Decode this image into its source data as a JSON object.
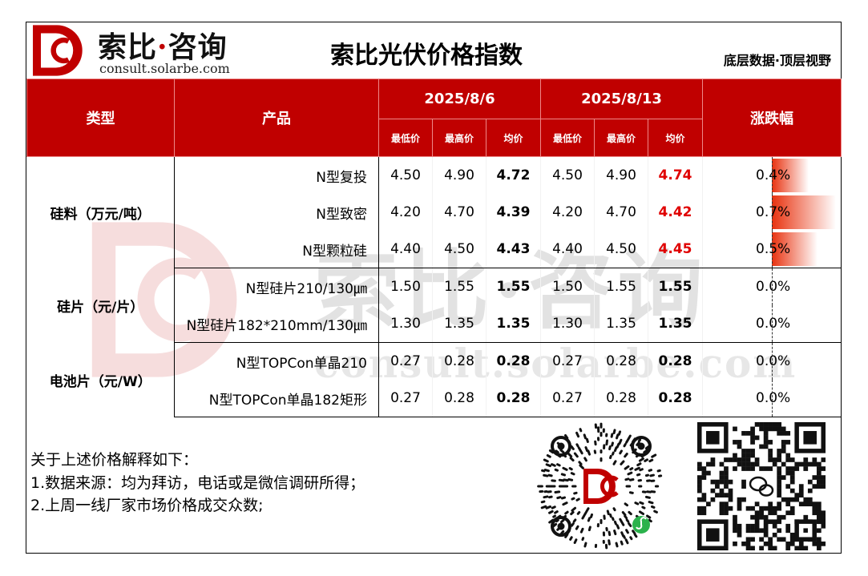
{
  "brand": {
    "name_left": "索比",
    "dot": "·",
    "name_right": "咨询",
    "url": "consult.solarbe.com"
  },
  "title": "索比光伏价格指数",
  "slogan": "底层数据·顶层视野",
  "watermark": {
    "text": "索比·咨询",
    "url": "consult.solarbe.com"
  },
  "columns": {
    "type": "类型",
    "product": "产品",
    "date1": "2025/8/6",
    "date2": "2025/8/13",
    "change": "涨跌幅",
    "min": "最低价",
    "max": "最高价",
    "avg": "均价"
  },
  "groups": [
    {
      "category": "硅料（万元/吨）",
      "rows": [
        {
          "product": "N型复投",
          "d1": [
            "4.50",
            "4.90",
            "4.72"
          ],
          "d2": [
            "4.50",
            "4.90",
            "4.74"
          ],
          "change": "0.4%",
          "change_value": 0.4,
          "d2_avg_red": true
        },
        {
          "product": "N型致密",
          "d1": [
            "4.20",
            "4.70",
            "4.39"
          ],
          "d2": [
            "4.20",
            "4.70",
            "4.42"
          ],
          "change": "0.7%",
          "change_value": 0.7,
          "d2_avg_red": true
        },
        {
          "product": "N型颗粒硅",
          "d1": [
            "4.40",
            "4.50",
            "4.43"
          ],
          "d2": [
            "4.40",
            "4.50",
            "4.45"
          ],
          "change": "0.5%",
          "change_value": 0.5,
          "d2_avg_red": true
        }
      ]
    },
    {
      "category": "硅片（元/片）",
      "rows": [
        {
          "product": "N型硅片210/130㎛",
          "d1": [
            "1.50",
            "1.55",
            "1.55"
          ],
          "d2": [
            "1.50",
            "1.55",
            "1.55"
          ],
          "change": "0.0%",
          "change_value": 0,
          "d2_avg_red": false
        },
        {
          "product": "N型硅片182*210mm/130㎛",
          "d1": [
            "1.30",
            "1.35",
            "1.35"
          ],
          "d2": [
            "1.30",
            "1.35",
            "1.35"
          ],
          "change": "0.0%",
          "change_value": 0,
          "d2_avg_red": false
        }
      ]
    },
    {
      "category": "电池片（元/W）",
      "rows": [
        {
          "product": "N型TOPCon单晶210",
          "d1": [
            "0.27",
            "0.28",
            "0.28"
          ],
          "d2": [
            "0.27",
            "0.28",
            "0.28"
          ],
          "change": "0.0%",
          "change_value": 0,
          "d2_avg_red": false
        },
        {
          "product": "N型TOPCon单晶182矩形",
          "d1": [
            "0.27",
            "0.28",
            "0.28"
          ],
          "d2": [
            "0.27",
            "0.28",
            "0.28"
          ],
          "change": "0.0%",
          "change_value": 0,
          "d2_avg_red": false
        }
      ]
    }
  ],
  "notes": {
    "heading": "关于上述价格解释如下：",
    "items": [
      "1.数据来源：均为拜访，电话或是微信调研所得；",
      "2.上周一线厂家市场价格成交众数;"
    ]
  },
  "colors": {
    "brand_red": "#c00000",
    "highlight_red": "#e00000",
    "bar_start": "#e8320f"
  },
  "icons": {
    "mini_program_code": "mini-program-qr-icon",
    "wechat_qr": "wechat-qr-icon"
  }
}
